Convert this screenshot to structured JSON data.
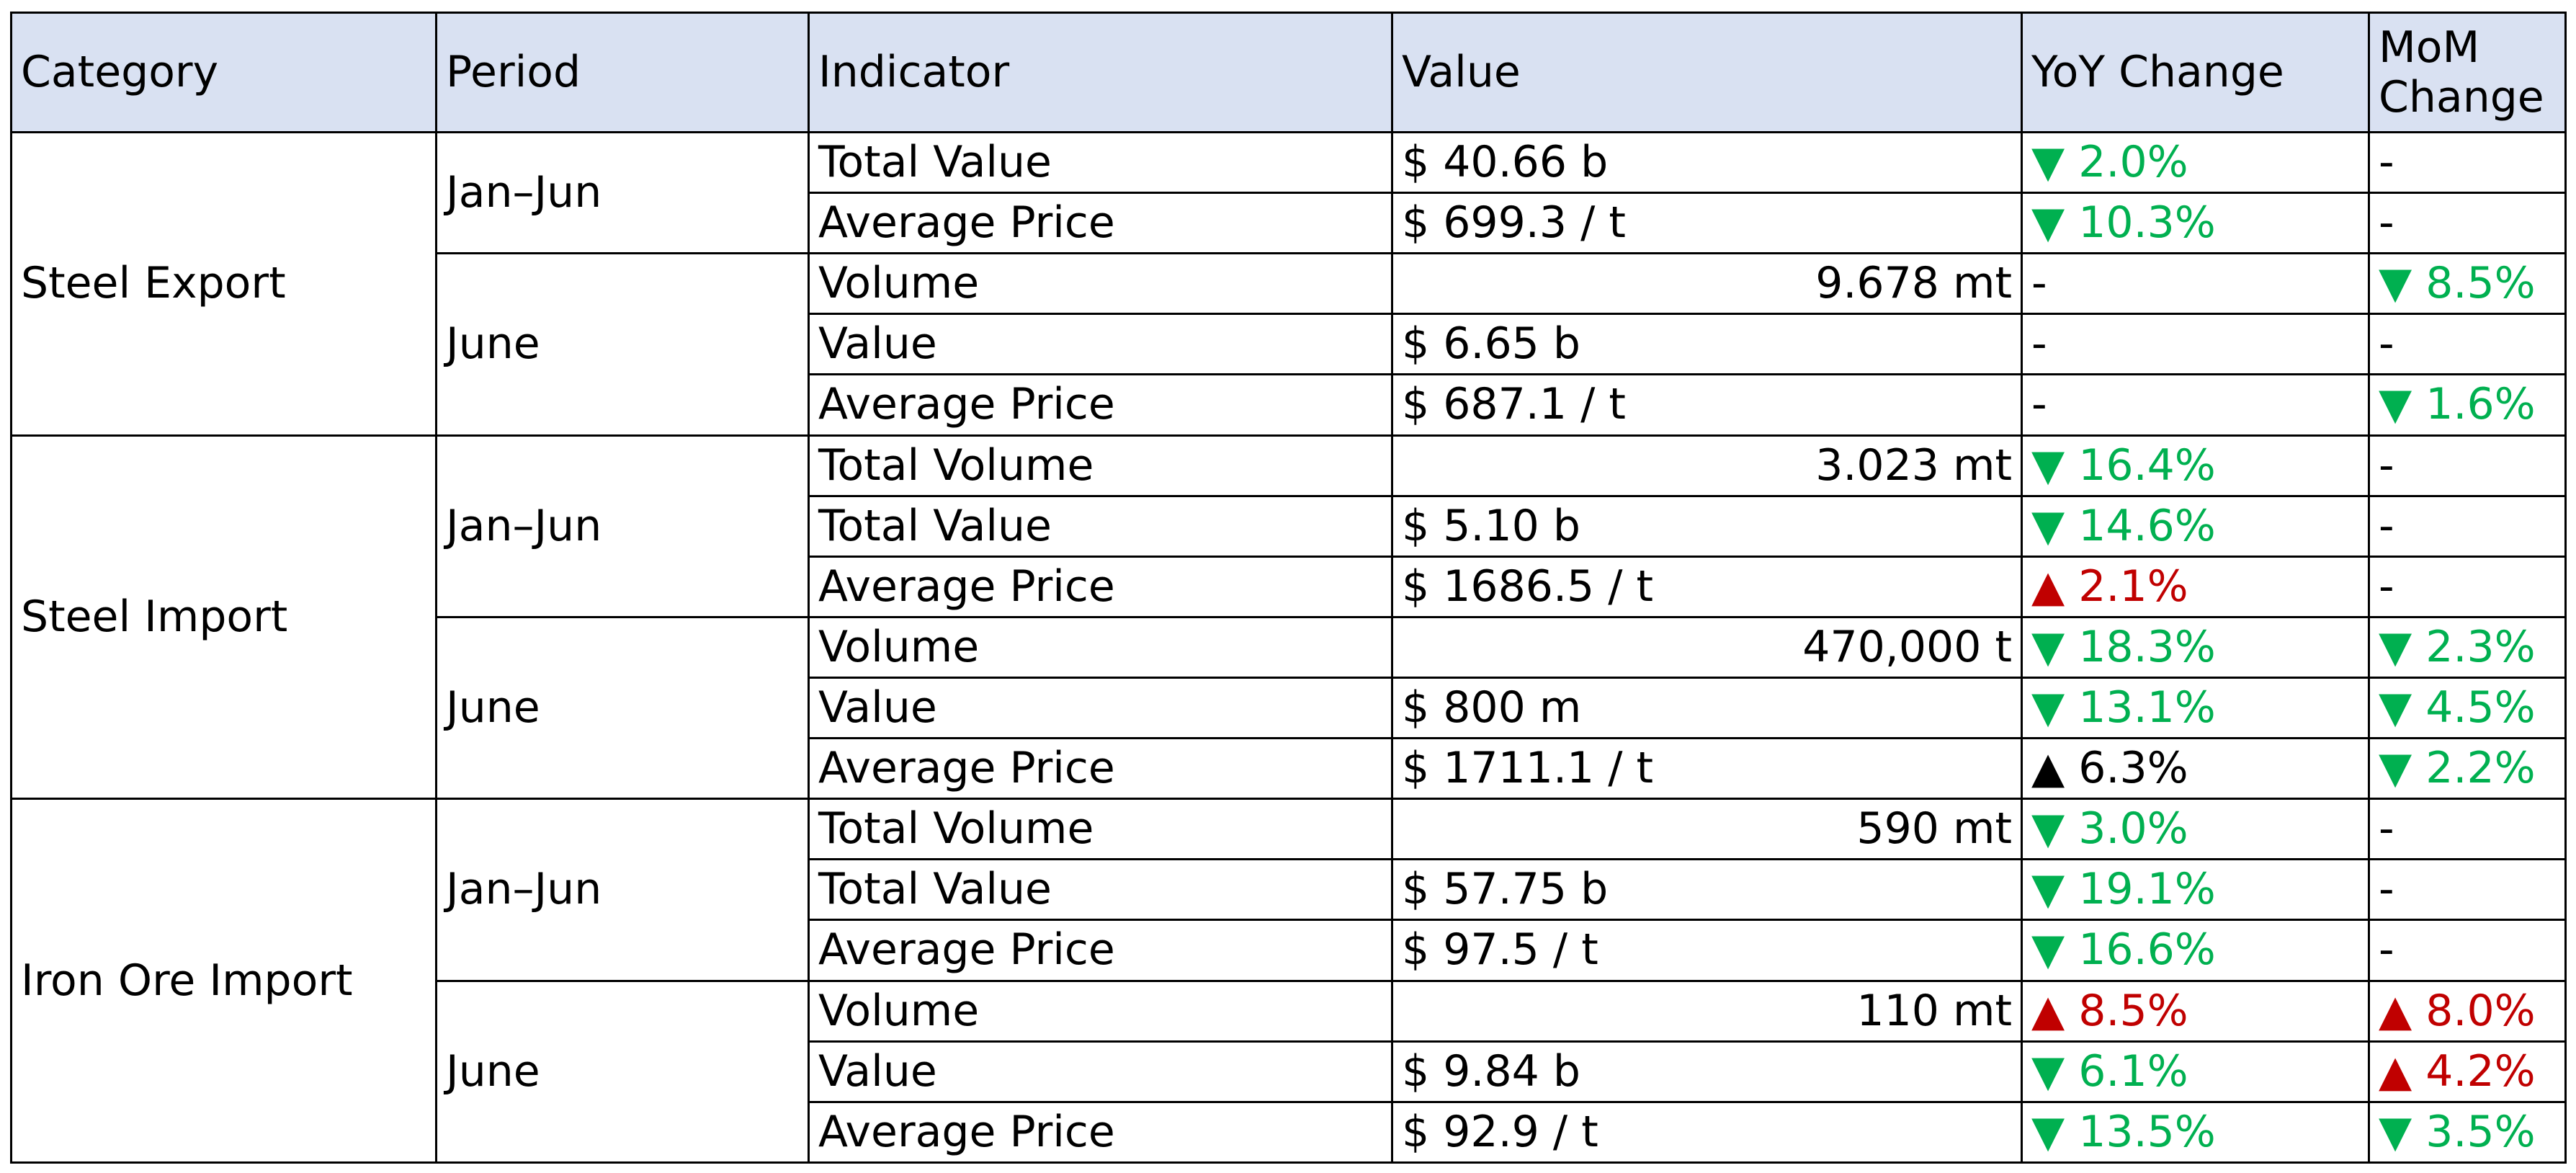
{
  "headers": [
    "Category",
    "Period",
    "Indicator",
    "Value",
    "YoY Change",
    "MoM Change"
  ],
  "colors": {
    "header_bg": "#d9e1f2",
    "decrease": "#00b050",
    "increase": "#c00000",
    "neutral": "#000000"
  },
  "groups": [
    {
      "category": "Steel Export",
      "periods": [
        {
          "period": "Jan–Jun",
          "rows": [
            {
              "indicator": "Total Value",
              "value": "$ 40.66 b",
              "value_align": "left",
              "yoy": "▼ 2.0%",
              "yoy_color": "green",
              "mom": "-",
              "mom_color": "black"
            },
            {
              "indicator": "Average Price",
              "value": "$ 699.3 / t",
              "value_align": "left",
              "yoy": "▼ 10.3%",
              "yoy_color": "green",
              "mom": "-",
              "mom_color": "black"
            }
          ]
        },
        {
          "period": "June",
          "rows": [
            {
              "indicator": "Volume",
              "value": "9.678 mt",
              "value_align": "right",
              "yoy": "-",
              "yoy_color": "black",
              "mom": "▼ 8.5%",
              "mom_color": "green"
            },
            {
              "indicator": "Value",
              "value": "$ 6.65 b",
              "value_align": "left",
              "yoy": "-",
              "yoy_color": "black",
              "mom": "-",
              "mom_color": "black"
            },
            {
              "indicator": "Average Price",
              "value": "$ 687.1 / t",
              "value_align": "left",
              "yoy": "-",
              "yoy_color": "black",
              "mom": "▼ 1.6%",
              "mom_color": "green"
            }
          ]
        }
      ]
    },
    {
      "category": "Steel Import",
      "periods": [
        {
          "period": "Jan–Jun",
          "rows": [
            {
              "indicator": "Total Volume",
              "value": "3.023 mt",
              "value_align": "right",
              "yoy": "▼ 16.4%",
              "yoy_color": "green",
              "mom": "-",
              "mom_color": "black"
            },
            {
              "indicator": "Total Value",
              "value": "$ 5.10 b",
              "value_align": "left",
              "yoy": "▼ 14.6%",
              "yoy_color": "green",
              "mom": "-",
              "mom_color": "black"
            },
            {
              "indicator": "Average Price",
              "value": "$ 1686.5 / t",
              "value_align": "left",
              "yoy": "▲ 2.1%",
              "yoy_color": "red",
              "mom": "-",
              "mom_color": "black"
            }
          ]
        },
        {
          "period": "June",
          "rows": [
            {
              "indicator": "Volume",
              "value": "470,000 t",
              "value_align": "right",
              "yoy": "▼ 18.3%",
              "yoy_color": "green",
              "mom": "▼ 2.3%",
              "mom_color": "green"
            },
            {
              "indicator": "Value",
              "value": "$ 800 m",
              "value_align": "left",
              "yoy": "▼ 13.1%",
              "yoy_color": "green",
              "mom": "▼ 4.5%",
              "mom_color": "green"
            },
            {
              "indicator": "Average Price",
              "value": "$ 1711.1 / t",
              "value_align": "left",
              "yoy": "▲ 6.3%",
              "yoy_color": "black",
              "mom": "▼ 2.2%",
              "mom_color": "green"
            }
          ]
        }
      ]
    },
    {
      "category": "Iron Ore Import",
      "periods": [
        {
          "period": "Jan–Jun",
          "rows": [
            {
              "indicator": "Total Volume",
              "value": "590 mt",
              "value_align": "right",
              "yoy": "▼ 3.0%",
              "yoy_color": "green",
              "mom": "-",
              "mom_color": "black"
            },
            {
              "indicator": "Total Value",
              "value": "$ 57.75 b",
              "value_align": "left",
              "yoy": "▼ 19.1%",
              "yoy_color": "green",
              "mom": "-",
              "mom_color": "black"
            },
            {
              "indicator": "Average Price",
              "value": "$ 97.5 / t",
              "value_align": "left",
              "yoy": "▼ 16.6%",
              "yoy_color": "green",
              "mom": "-",
              "mom_color": "black"
            }
          ]
        },
        {
          "period": "June",
          "rows": [
            {
              "indicator": "Volume",
              "value": "110 mt",
              "value_align": "right",
              "yoy": "▲ 8.5%",
              "yoy_color": "red",
              "mom": "▲ 8.0%",
              "mom_color": "red"
            },
            {
              "indicator": "Value",
              "value": "$ 9.84 b",
              "value_align": "left",
              "yoy": "▼ 6.1%",
              "yoy_color": "green",
              "mom": "▲ 4.2%",
              "mom_color": "red"
            },
            {
              "indicator": "Average Price",
              "value": "$ 92.9 / t",
              "value_align": "left",
              "yoy": "▼ 13.5%",
              "yoy_color": "green",
              "mom": "▼ 3.5%",
              "mom_color": "green"
            }
          ]
        }
      ]
    }
  ]
}
